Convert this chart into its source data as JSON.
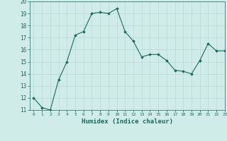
{
  "x": [
    0,
    1,
    2,
    3,
    4,
    5,
    6,
    7,
    8,
    9,
    10,
    11,
    12,
    13,
    14,
    15,
    16,
    17,
    18,
    19,
    20,
    21,
    22,
    23
  ],
  "y_values": [
    12,
    11.2,
    11,
    13.5,
    15,
    17.2,
    17.5,
    19,
    19.1,
    19,
    19.4,
    17.5,
    16.7,
    15.4,
    15.6,
    15.6,
    15.1,
    14.3,
    14.2,
    14.0,
    15.1,
    16.5,
    15.9,
    15.9
  ],
  "xlabel": "Humidex (Indice chaleur)",
  "ylim": [
    11,
    20
  ],
  "xlim": [
    -0.5,
    23
  ],
  "yticks": [
    11,
    12,
    13,
    14,
    15,
    16,
    17,
    18,
    19,
    20
  ],
  "xticks": [
    0,
    1,
    2,
    3,
    4,
    5,
    6,
    7,
    8,
    9,
    10,
    11,
    12,
    13,
    14,
    15,
    16,
    17,
    18,
    19,
    20,
    21,
    22,
    23
  ],
  "line_color": "#1a6b5a",
  "marker_color": "#1a6b5a",
  "bg_color": "#d0ece8",
  "grid_color": "#b8d8d4",
  "xlabel_color": "#1a6b5a",
  "tick_color": "#1a6b5a"
}
